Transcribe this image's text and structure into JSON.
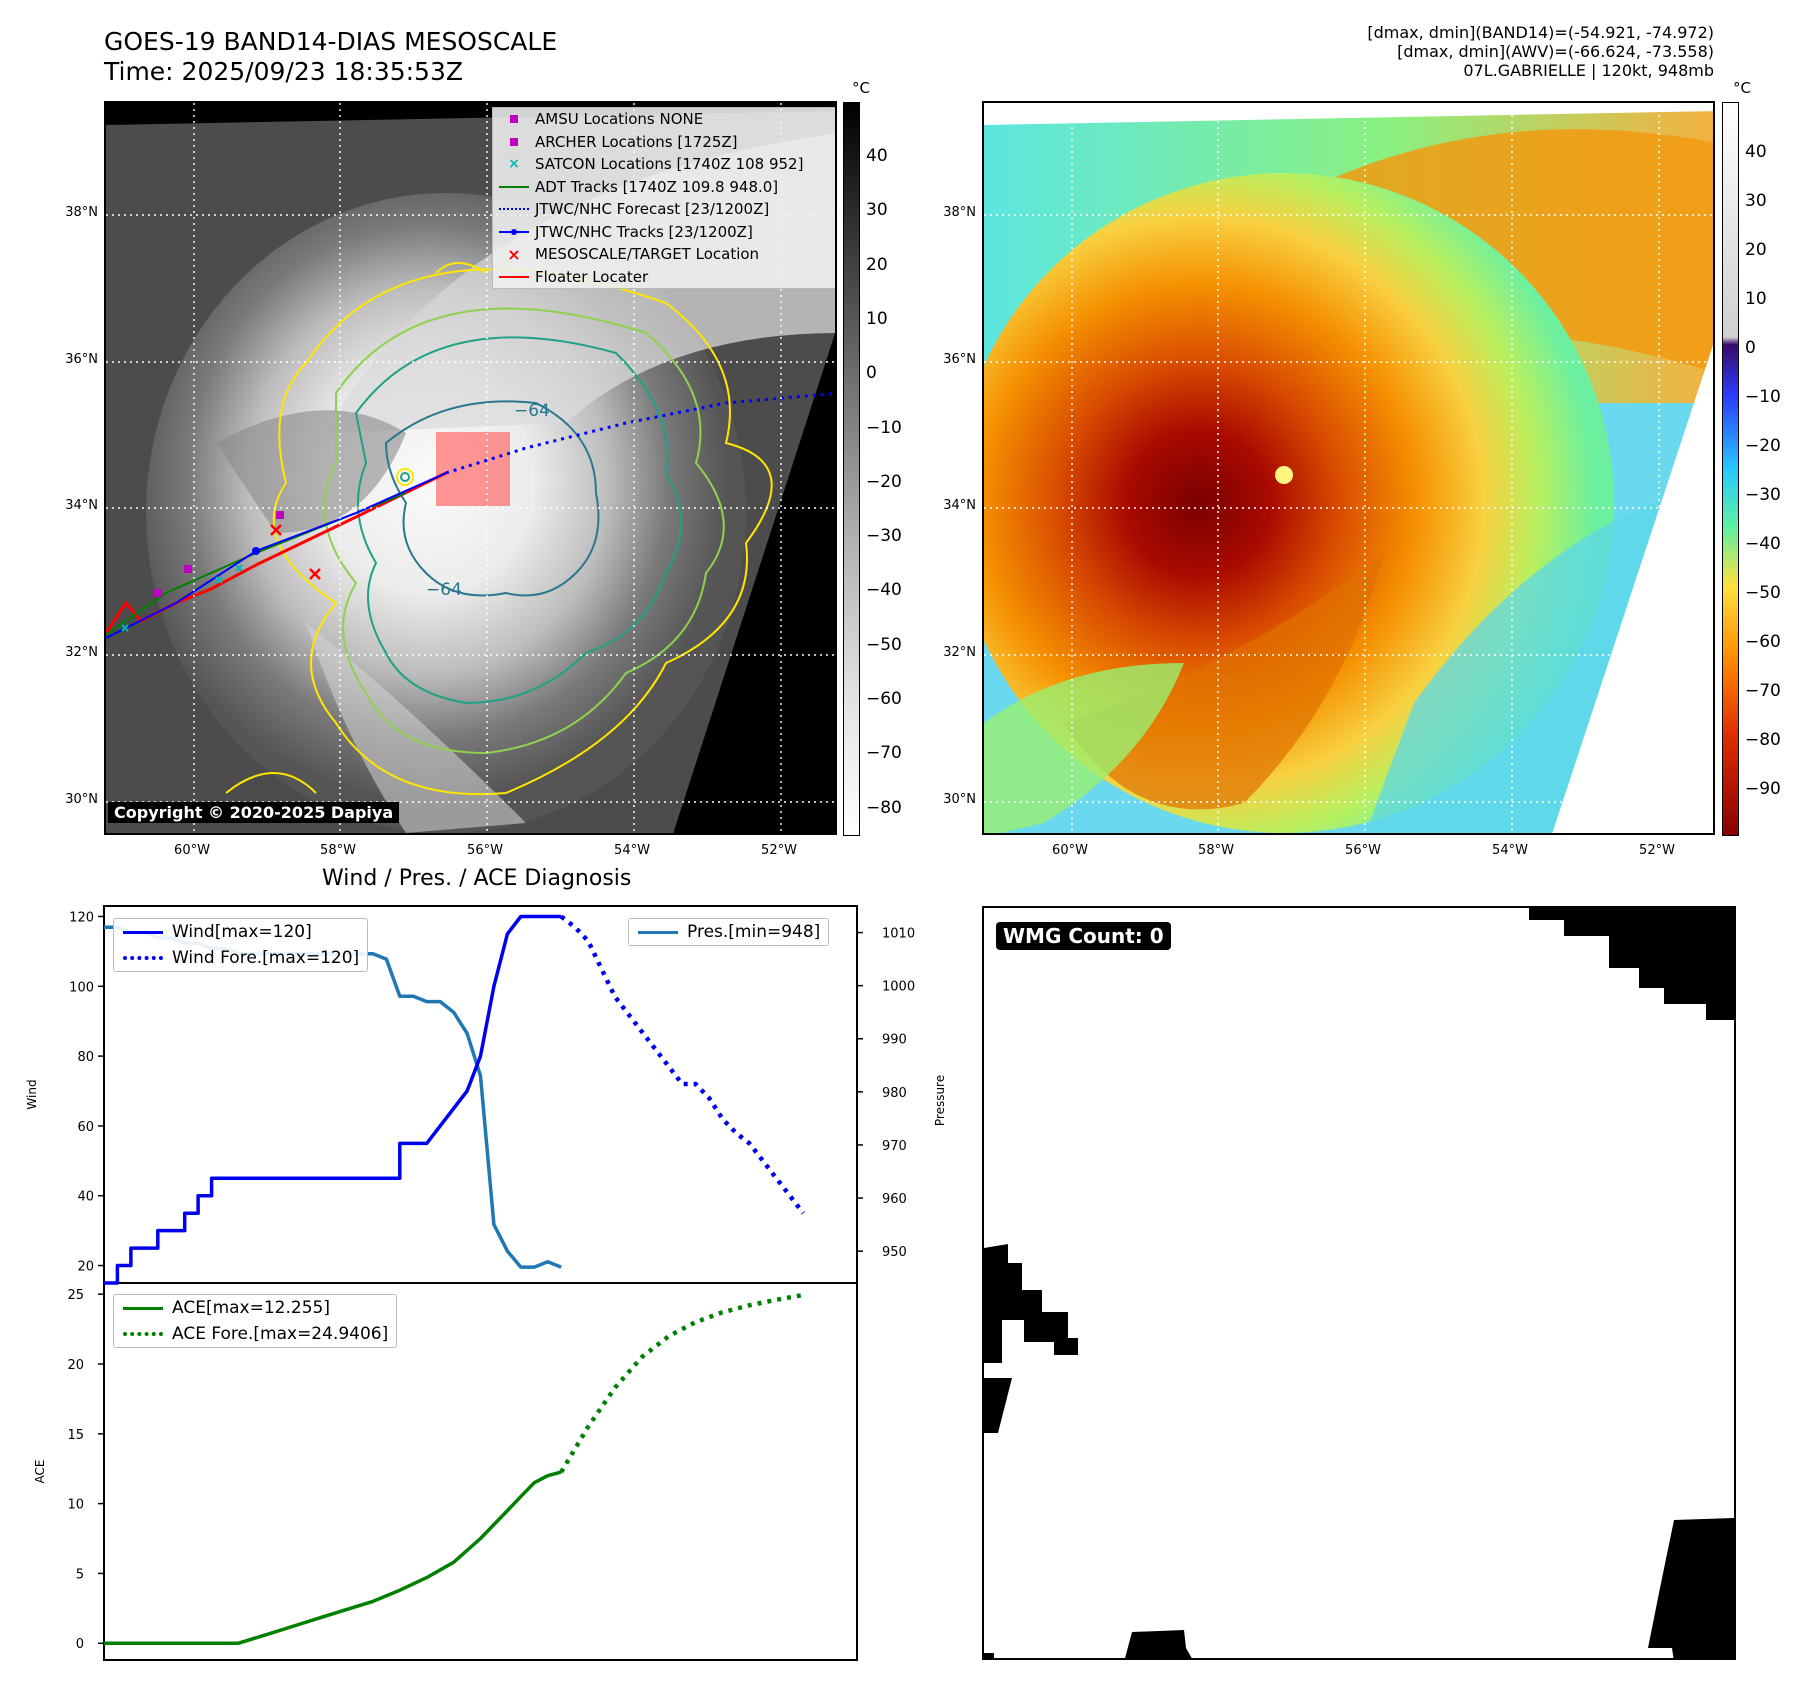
{
  "header": {
    "title_line1": "GOES-19 BAND14-DIAS MESOSCALE",
    "title_line2": "Time: 2025/09/23 18:35:53Z",
    "info_line1": "[dmax, dmin](BAND14)=(-54.921, -74.972)",
    "info_line2": "[dmax, dmin](AWV)=(-66.624, -73.558)",
    "info_line3": "07L.GABRIELLE | 120kt, 948mb"
  },
  "map_axes": {
    "lat_ticks": [
      "38°N",
      "36°N",
      "34°N",
      "32°N",
      "30°N"
    ],
    "lon_ticks": [
      "60°W",
      "58°W",
      "56°W",
      "54°W",
      "52°W"
    ]
  },
  "ir_panel": {
    "colorbar_unit": "°C",
    "colorbar_ticks": [
      "40",
      "30",
      "20",
      "10",
      "0",
      "−10",
      "−20",
      "−30",
      "−40",
      "−50",
      "−60",
      "−70",
      "−80"
    ],
    "copyright": "Copyright © 2020-2025 Dapiya",
    "contour_labels": [
      "−64",
      "−64"
    ],
    "legend": [
      {
        "label": "AMSU Locations NONE",
        "marker": "square",
        "color": "#c000c0"
      },
      {
        "label": "ARCHER Locations [1725Z]",
        "marker": "square",
        "color": "#c000c0"
      },
      {
        "label": "SATCON Locations [1740Z 108 952]",
        "marker": "x",
        "color": "#00b8b8"
      },
      {
        "label": "ADT Tracks [1740Z 109.8 948.0]",
        "marker": "line",
        "color": "#008000"
      },
      {
        "label": "JTWC/NHC Forecast [23/1200Z]",
        "marker": "dotted",
        "color": "#0000ff"
      },
      {
        "label": "JTWC/NHC Tracks [23/1200Z]",
        "marker": "line-dot",
        "color": "#0000ff"
      },
      {
        "label": "MESOSCALE/TARGET Location",
        "marker": "x",
        "color": "#ff0000"
      },
      {
        "label": "Floater Locater",
        "marker": "line",
        "color": "#ff0000"
      }
    ]
  },
  "awv_panel": {
    "colorbar_unit": "°C",
    "colorbar_ticks": [
      "40",
      "30",
      "20",
      "10",
      "0",
      "−10",
      "−20",
      "−30",
      "−40",
      "−50",
      "−60",
      "−70",
      "−80",
      "−90"
    ]
  },
  "chart_data": [
    {
      "type": "line",
      "title": "Wind / Pres. / ACE Diagnosis",
      "ylabel": "Wind",
      "y2label": "Pressure",
      "ylim": [
        15,
        123
      ],
      "y2lim": [
        944,
        1015
      ],
      "yticks": [
        "120",
        "100",
        "80",
        "60",
        "40",
        "20"
      ],
      "y2ticks": [
        "1010",
        "1000",
        "990",
        "980",
        "970",
        "960",
        "950"
      ],
      "xlim": [
        0,
        56
      ],
      "legend_left": [
        "Wind[max=120]",
        "Wind Fore.[max=120]"
      ],
      "legend_right": [
        "Pres.[min=948]"
      ],
      "series": [
        {
          "name": "Wind[max=120]",
          "axis": "left",
          "style": "solid",
          "color": "#0000ee",
          "x": [
            0,
            1,
            1,
            2,
            2,
            3,
            3,
            4,
            4,
            5,
            5,
            6,
            6,
            7,
            7,
            8,
            8,
            9,
            10,
            11,
            12,
            13,
            14,
            15,
            16,
            17,
            18,
            19,
            20,
            21,
            22,
            22,
            23,
            24,
            25,
            26,
            27,
            28,
            29,
            30,
            31,
            32,
            33,
            34
          ],
          "y": [
            15,
            15,
            20,
            20,
            25,
            25,
            25,
            25,
            30,
            30,
            30,
            30,
            35,
            35,
            40,
            40,
            45,
            45,
            45,
            45,
            45,
            45,
            45,
            45,
            45,
            45,
            45,
            45,
            45,
            45,
            45,
            55,
            55,
            55,
            60,
            65,
            70,
            80,
            100,
            115,
            120,
            120,
            120,
            120
          ]
        },
        {
          "name": "Wind Fore.[max=120]",
          "axis": "left",
          "style": "dotted",
          "color": "#0000ee",
          "x": [
            34,
            35,
            36,
            37,
            38,
            39,
            40,
            41,
            42,
            43,
            44,
            45,
            46,
            47,
            48,
            49,
            50,
            51,
            52
          ],
          "y": [
            120,
            117,
            113,
            105,
            97,
            92,
            87,
            82,
            77,
            72,
            72,
            68,
            62,
            58,
            55,
            50,
            45,
            40,
            35
          ]
        },
        {
          "name": "Pres.[min=948]",
          "axis": "right",
          "style": "solid",
          "color": "#1f77b4",
          "x": [
            0,
            1,
            2,
            3,
            4,
            5,
            6,
            7,
            8,
            9,
            10,
            11,
            12,
            13,
            14,
            15,
            16,
            17,
            18,
            19,
            20,
            21,
            22,
            23,
            24,
            25,
            26,
            27,
            28,
            29,
            30,
            31,
            32,
            33,
            34
          ],
          "y": [
            1011,
            1011,
            1010,
            1010,
            1009,
            1009,
            1008,
            1008,
            1007,
            1007,
            1006,
            1006,
            1006,
            1006,
            1006,
            1006,
            1006,
            1006,
            1006,
            1006,
            1006,
            1005,
            998,
            998,
            997,
            997,
            995,
            991,
            983,
            955,
            950,
            947,
            947,
            948,
            947
          ]
        }
      ]
    },
    {
      "type": "line",
      "ylabel": "ACE",
      "ylim": [
        -1.2,
        25.8
      ],
      "yticks": [
        "25",
        "20",
        "15",
        "10",
        "5",
        "0"
      ],
      "xlim": [
        0,
        56
      ],
      "legend": [
        "ACE[max=12.255]",
        "ACE Fore.[max=24.9406]"
      ],
      "series": [
        {
          "name": "ACE[max=12.255]",
          "style": "solid",
          "color": "#008000",
          "x": [
            0,
            3,
            6,
            9,
            10,
            12,
            14,
            16,
            18,
            20,
            22,
            24,
            26,
            28,
            30,
            31,
            32,
            33,
            34
          ],
          "y": [
            0,
            0,
            0,
            0,
            0,
            0.6,
            1.2,
            1.8,
            2.4,
            3.0,
            3.8,
            4.7,
            5.8,
            7.5,
            9.5,
            10.5,
            11.5,
            12.0,
            12.255
          ]
        },
        {
          "name": "ACE Fore.[max=24.9406]",
          "style": "dotted",
          "color": "#008000",
          "x": [
            34,
            36,
            38,
            40,
            42,
            44,
            46,
            48,
            50,
            52
          ],
          "y": [
            12.255,
            15.5,
            18.3,
            20.5,
            22.0,
            23.0,
            23.7,
            24.2,
            24.6,
            24.94
          ]
        }
      ]
    }
  ],
  "wmg_panel": {
    "label": "WMG Count: 0"
  }
}
